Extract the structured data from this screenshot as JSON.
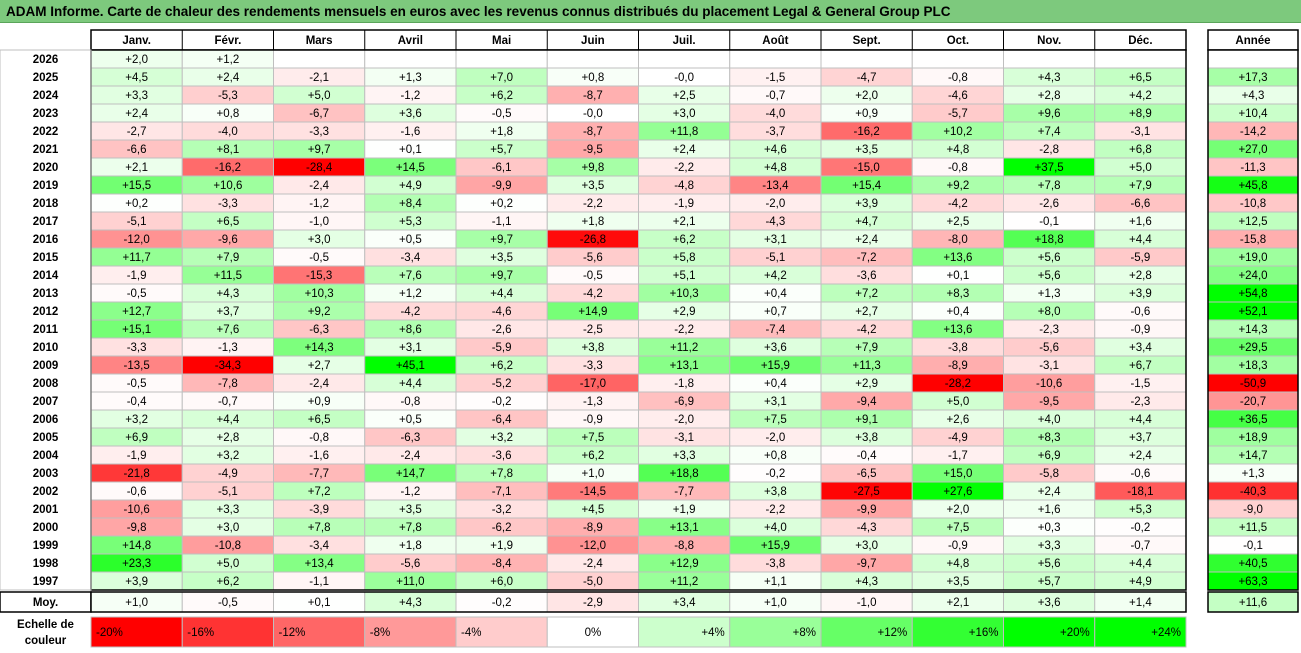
{
  "chart_data": {
    "type": "heatmap",
    "title": "ADAM Informe. Carte de chaleur des rendements mensuels en euros avec les revenus connus distribués du placement Legal & General Group PLC",
    "columns": [
      "Janv.",
      "Févr.",
      "Mars",
      "Avril",
      "Mai",
      "Juin",
      "Juil.",
      "Août",
      "Sept.",
      "Oct.",
      "Nov.",
      "Déc."
    ],
    "year_column_label": "Année",
    "rows": [
      {
        "year": "2026",
        "values": [
          2.0,
          1.2,
          null,
          null,
          null,
          null,
          null,
          null,
          null,
          null,
          null,
          null
        ],
        "annual": null
      },
      {
        "year": "2025",
        "values": [
          4.5,
          2.4,
          -2.1,
          1.3,
          7.0,
          0.8,
          -0.0,
          -1.5,
          -4.7,
          -0.8,
          4.3,
          6.5
        ],
        "annual": 17.3
      },
      {
        "year": "2024",
        "values": [
          3.3,
          -5.3,
          5.0,
          -1.2,
          6.2,
          -8.7,
          2.5,
          -0.7,
          2.0,
          -4.6,
          2.8,
          4.2
        ],
        "annual": 4.3
      },
      {
        "year": "2023",
        "values": [
          2.4,
          0.8,
          -6.7,
          3.6,
          -0.5,
          -0.0,
          3.0,
          -4.0,
          0.9,
          -5.7,
          9.6,
          8.9
        ],
        "annual": 10.4
      },
      {
        "year": "2022",
        "values": [
          -2.7,
          -4.0,
          -3.3,
          -1.6,
          1.8,
          -8.7,
          11.8,
          -3.7,
          -16.2,
          10.2,
          7.4,
          -3.1
        ],
        "annual": -14.2
      },
      {
        "year": "2021",
        "values": [
          -6.6,
          8.1,
          9.7,
          0.1,
          5.7,
          -9.5,
          2.4,
          4.6,
          3.5,
          4.8,
          -2.8,
          6.8
        ],
        "annual": 27.0
      },
      {
        "year": "2020",
        "values": [
          2.1,
          -16.2,
          -28.4,
          14.5,
          -6.1,
          9.8,
          -2.2,
          4.8,
          -15.0,
          -0.8,
          37.5,
          5.0
        ],
        "annual": -11.3
      },
      {
        "year": "2019",
        "values": [
          15.5,
          10.6,
          -2.4,
          4.9,
          -9.9,
          3.5,
          -4.8,
          -13.4,
          15.4,
          9.2,
          7.8,
          7.9
        ],
        "annual": 45.8
      },
      {
        "year": "2018",
        "values": [
          0.2,
          -3.3,
          -1.2,
          8.4,
          0.2,
          -2.2,
          -1.9,
          -2.0,
          3.9,
          -4.2,
          -2.6,
          -6.6
        ],
        "annual": -10.8
      },
      {
        "year": "2017",
        "values": [
          -5.1,
          6.5,
          -1.0,
          5.3,
          -1.1,
          1.8,
          2.1,
          -4.3,
          4.7,
          2.5,
          -0.1,
          1.6
        ],
        "annual": 12.5
      },
      {
        "year": "2016",
        "values": [
          -12.0,
          -9.6,
          3.0,
          0.5,
          9.7,
          -26.8,
          6.2,
          3.1,
          2.4,
          -8.0,
          18.8,
          4.4
        ],
        "annual": -15.8
      },
      {
        "year": "2015",
        "values": [
          11.7,
          7.9,
          -0.5,
          -3.4,
          3.5,
          -5.6,
          5.8,
          -5.1,
          -7.2,
          13.6,
          5.6,
          -5.9
        ],
        "annual": 19.0
      },
      {
        "year": "2014",
        "values": [
          -1.9,
          11.5,
          -15.3,
          7.6,
          9.7,
          -0.5,
          5.1,
          4.2,
          -3.6,
          0.1,
          5.6,
          2.8
        ],
        "annual": 24.0
      },
      {
        "year": "2013",
        "values": [
          -0.5,
          4.3,
          10.3,
          1.2,
          4.4,
          -4.2,
          10.3,
          0.4,
          7.2,
          8.3,
          1.3,
          3.9
        ],
        "annual": 54.8
      },
      {
        "year": "2012",
        "values": [
          12.7,
          3.7,
          9.2,
          -4.2,
          -4.6,
          14.9,
          2.9,
          0.7,
          2.7,
          0.4,
          8.0,
          -0.6
        ],
        "annual": 52.1
      },
      {
        "year": "2011",
        "values": [
          15.1,
          7.6,
          -6.3,
          8.6,
          -2.6,
          -2.5,
          -2.2,
          -7.4,
          -4.2,
          13.6,
          -2.3,
          -0.9
        ],
        "annual": 14.3
      },
      {
        "year": "2010",
        "values": [
          -3.3,
          -1.3,
          14.3,
          3.1,
          -5.9,
          3.8,
          11.2,
          3.6,
          7.9,
          -3.8,
          -5.6,
          3.4
        ],
        "annual": 29.5
      },
      {
        "year": "2009",
        "values": [
          -13.5,
          -34.3,
          2.7,
          45.1,
          6.2,
          -3.3,
          13.1,
          15.9,
          11.3,
          -8.9,
          -3.1,
          6.7
        ],
        "annual": 18.3
      },
      {
        "year": "2008",
        "values": [
          -0.5,
          -7.8,
          -2.4,
          4.4,
          -5.2,
          -17.0,
          -1.8,
          0.4,
          2.9,
          -28.2,
          -10.6,
          -1.5
        ],
        "annual": -50.9
      },
      {
        "year": "2007",
        "values": [
          -0.4,
          -0.7,
          0.9,
          -0.8,
          -0.2,
          -1.3,
          -6.9,
          3.1,
          -9.4,
          5.0,
          -9.5,
          -2.3
        ],
        "annual": -20.7
      },
      {
        "year": "2006",
        "values": [
          3.2,
          4.4,
          6.5,
          0.5,
          -6.4,
          -0.9,
          -2.0,
          7.5,
          9.1,
          2.6,
          4.0,
          4.4
        ],
        "annual": 36.5
      },
      {
        "year": "2005",
        "values": [
          6.9,
          2.8,
          -0.8,
          -6.3,
          3.2,
          7.5,
          -3.1,
          -2.0,
          3.8,
          -4.9,
          8.3,
          3.7
        ],
        "annual": 18.9
      },
      {
        "year": "2004",
        "values": [
          -1.9,
          3.2,
          -1.6,
          -2.4,
          -3.6,
          6.2,
          3.3,
          0.8,
          -0.4,
          -1.7,
          6.9,
          2.4
        ],
        "annual": 14.7
      },
      {
        "year": "2003",
        "values": [
          -21.8,
          -4.9,
          -7.7,
          14.7,
          7.8,
          1.0,
          18.8,
          -0.2,
          -6.5,
          15.0,
          -5.8,
          -0.6
        ],
        "annual": 1.3
      },
      {
        "year": "2002",
        "values": [
          -0.6,
          -5.1,
          7.2,
          -1.2,
          -7.1,
          -14.5,
          -7.7,
          3.8,
          -27.5,
          27.6,
          2.4,
          -18.1
        ],
        "annual": -40.3
      },
      {
        "year": "2001",
        "values": [
          -10.6,
          3.3,
          -3.9,
          3.5,
          -3.2,
          4.5,
          1.9,
          -2.2,
          -9.9,
          2.0,
          1.6,
          5.3
        ],
        "annual": -9.0
      },
      {
        "year": "2000",
        "values": [
          -9.8,
          3.0,
          7.8,
          7.8,
          -6.2,
          -8.9,
          13.1,
          4.0,
          -4.3,
          7.5,
          0.3,
          -0.2
        ],
        "annual": 11.5
      },
      {
        "year": "1999",
        "values": [
          14.8,
          -10.8,
          -3.4,
          1.8,
          1.9,
          -12.0,
          -8.8,
          15.9,
          3.0,
          -0.9,
          3.3,
          -0.7
        ],
        "annual": -0.1
      },
      {
        "year": "1998",
        "values": [
          23.3,
          5.0,
          13.4,
          -5.6,
          -8.4,
          -2.4,
          12.9,
          -3.8,
          -9.7,
          4.8,
          5.6,
          4.4
        ],
        "annual": 40.5
      },
      {
        "year": "1997",
        "values": [
          3.9,
          6.2,
          -1.1,
          11.0,
          6.0,
          -5.0,
          11.2,
          1.1,
          4.3,
          3.5,
          5.7,
          4.9
        ],
        "annual": 63.3
      }
    ],
    "average": {
      "label": "Moy.",
      "values": [
        1.0,
        -0.5,
        0.1,
        4.3,
        -0.2,
        -2.9,
        3.4,
        1.0,
        -1.0,
        2.1,
        3.6,
        1.4
      ],
      "annual": 11.6
    },
    "legend": {
      "label_line1": "Echelle de",
      "label_line2": "couleur",
      "steps": [
        {
          "label": "-20%",
          "value": -20,
          "color": "#ff0000"
        },
        {
          "label": "-16%",
          "value": -16,
          "color": "#ff3333"
        },
        {
          "label": "-12%",
          "value": -12,
          "color": "#ff6666"
        },
        {
          "label": "-8%",
          "value": -8,
          "color": "#ff9999"
        },
        {
          "label": "-4%",
          "value": -4,
          "color": "#ffcccc"
        },
        {
          "label": "0%",
          "value": 0,
          "color": "#ffffff"
        },
        {
          "label": "+4%",
          "value": 4,
          "color": "#ccffcc"
        },
        {
          "label": "+8%",
          "value": 8,
          "color": "#99ff99"
        },
        {
          "label": "+12%",
          "value": 12,
          "color": "#66ff66"
        },
        {
          "label": "+16%",
          "value": 16,
          "color": "#33ff33"
        },
        {
          "label": "+20%",
          "value": 20,
          "color": "#00ff00"
        },
        {
          "label": "+24%",
          "value": 24,
          "color": "#00ff00"
        }
      ]
    },
    "colors": {
      "title_bar": "#7dc97d",
      "grid": "#bfbfbf",
      "frame": "#000000"
    }
  }
}
